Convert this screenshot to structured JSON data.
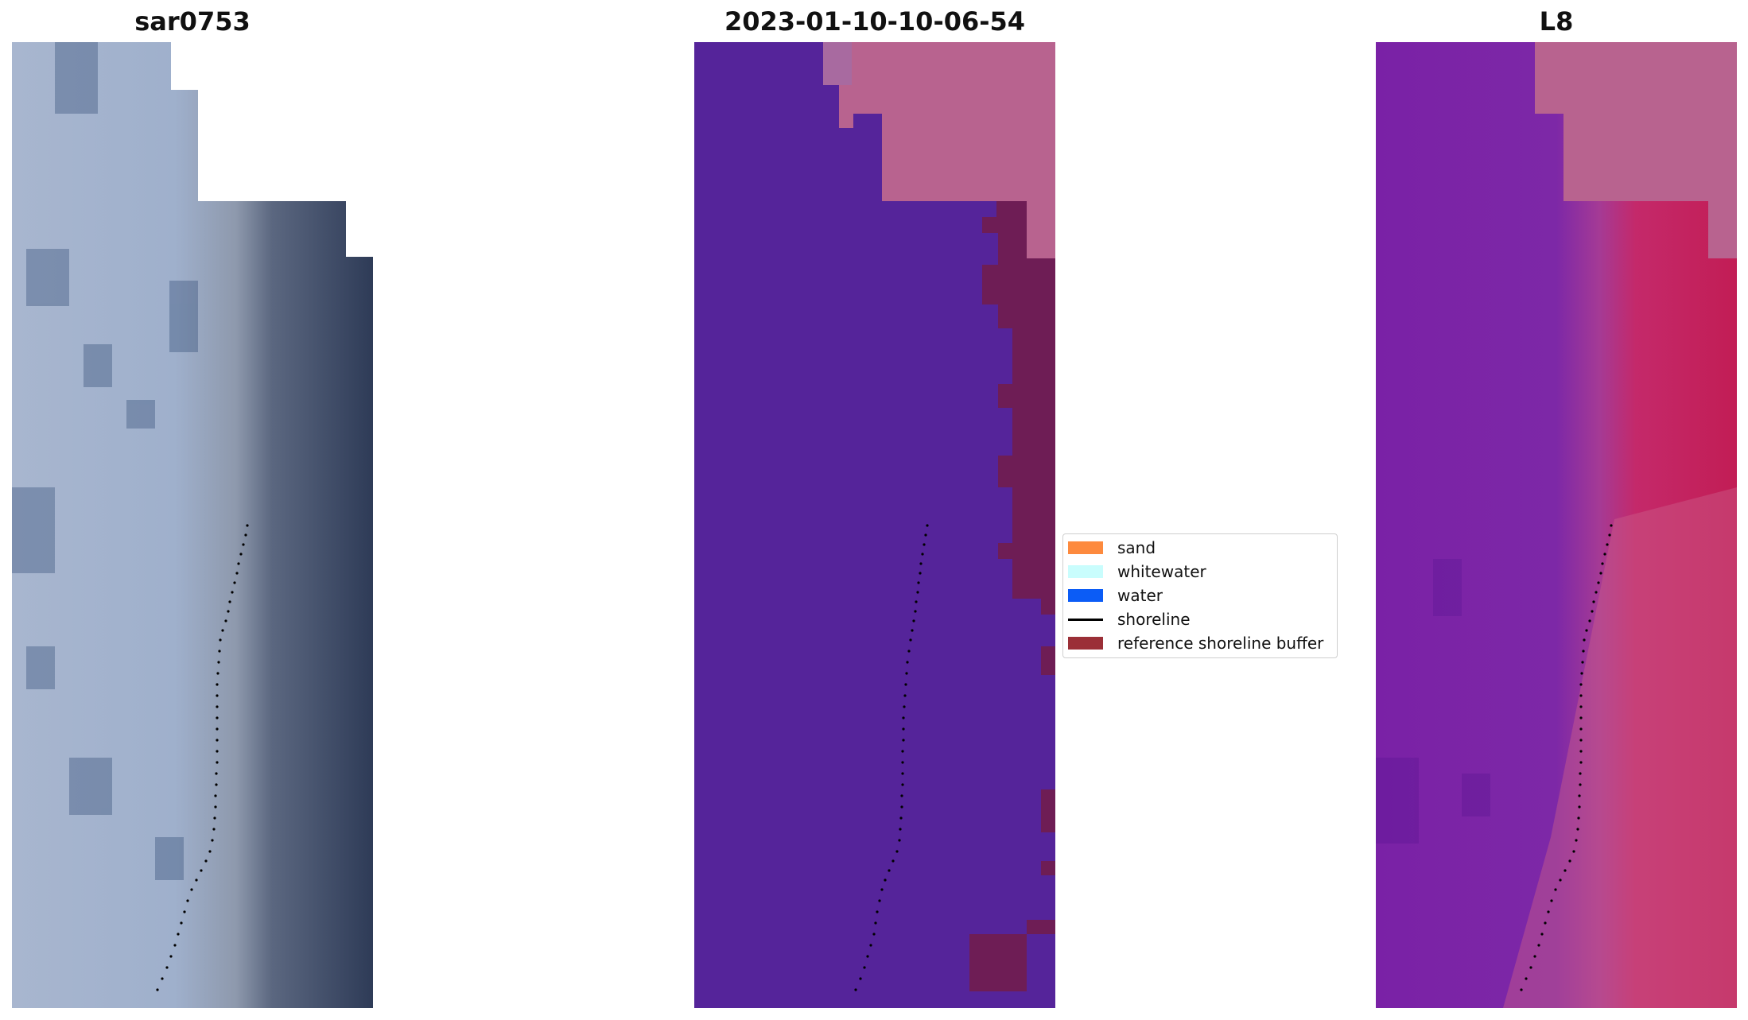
{
  "panels": [
    {
      "title": "sar0753",
      "image": "true-color satellite image (RGB)"
    },
    {
      "title": "2023-01-10-10-06-54",
      "image": "classified image overlay"
    },
    {
      "title": "L8",
      "image": "false-color index image"
    }
  ],
  "legend": {
    "items": [
      {
        "label": "sand",
        "type": "patch",
        "color": "#fd8a3e"
      },
      {
        "label": "whitewater",
        "type": "patch",
        "color": "#c9fdfd"
      },
      {
        "label": "water",
        "type": "patch",
        "color": "#0b5cf6"
      },
      {
        "label": "shoreline",
        "type": "line",
        "color": "#000000"
      },
      {
        "label": "reference shoreline buffer",
        "type": "patch",
        "color": "#9b2f37"
      }
    ]
  },
  "colors": {
    "rgb_land": "#a9b8d3",
    "rgb_water": "#2f3d5a",
    "class_background": "#55249a",
    "class_cloudmask": "#b8638f",
    "class_buffer": "#6e1d55",
    "index_water": "#c21d55",
    "index_land": "#7a21a6"
  }
}
